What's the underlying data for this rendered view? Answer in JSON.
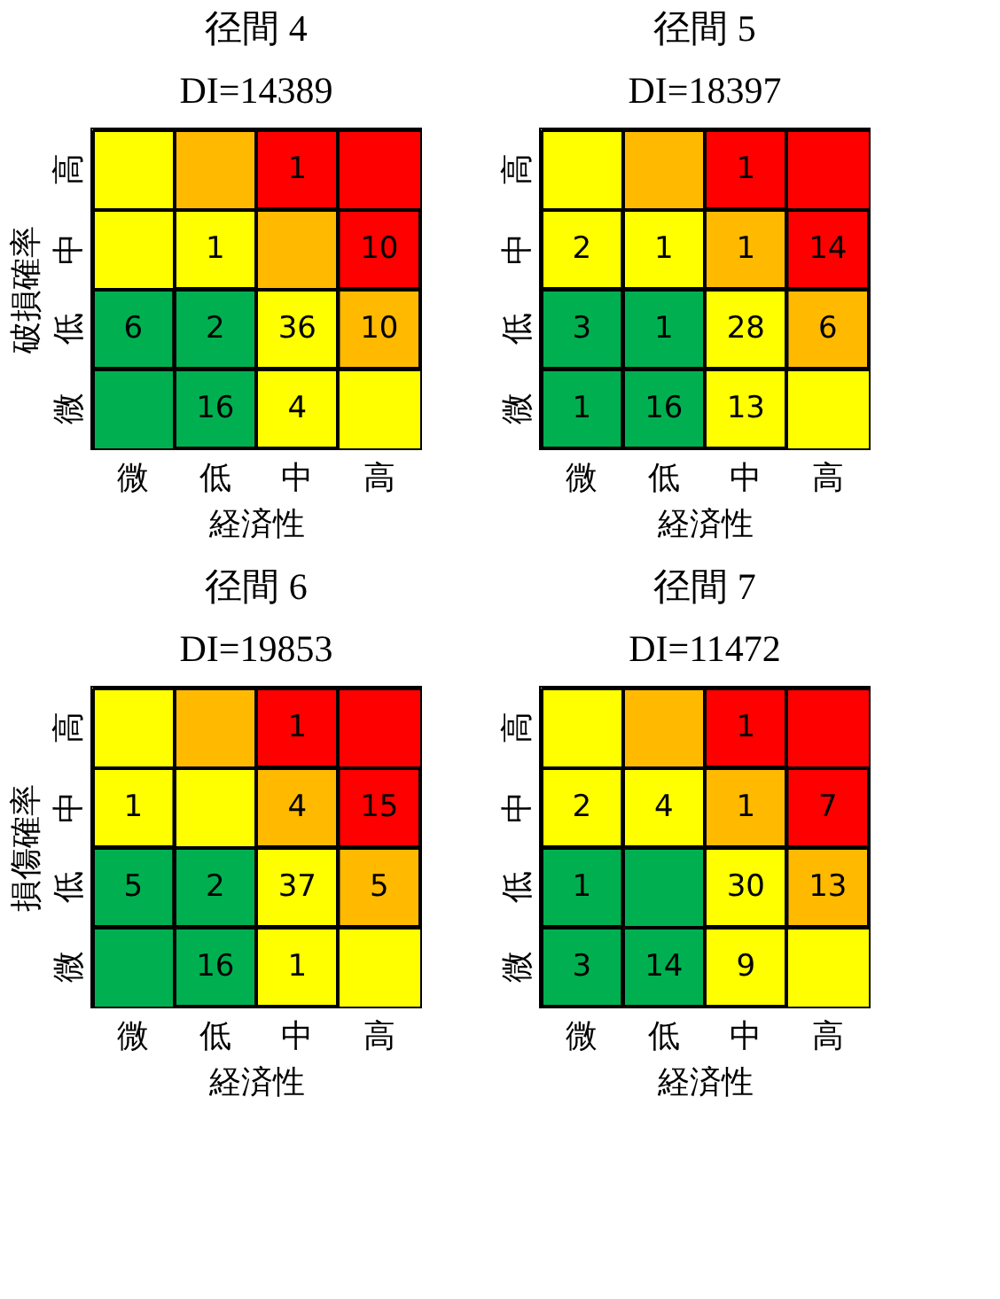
{
  "chart_data": [
    {
      "type": "heatmap",
      "title": "径間 4",
      "subtitle": "DI=14389",
      "xlabel": "経済性",
      "ylabel": "破損確率",
      "categories": [
        "微",
        "低",
        "中",
        "高"
      ],
      "y_categories": [
        "高",
        "中",
        "低",
        "微"
      ],
      "cells": [
        [
          null,
          null,
          1,
          null
        ],
        [
          null,
          1,
          null,
          10
        ],
        [
          6,
          2,
          36,
          10
        ],
        [
          null,
          16,
          4,
          null
        ]
      ],
      "colors": [
        [
          "#ffff00",
          "#ffba00",
          "#ff0000",
          "#ff0000"
        ],
        [
          "#ffff00",
          "#ffff00",
          "#ffba00",
          "#ff0000"
        ],
        [
          "#00b050",
          "#00b050",
          "#ffff00",
          "#ffba00"
        ],
        [
          "#00b050",
          "#00b050",
          "#ffff00",
          "#ffff00"
        ]
      ],
      "data_labels": true,
      "grid": true
    },
    {
      "type": "heatmap",
      "title": "径間 5",
      "subtitle": "DI=18397",
      "xlabel": "経済性",
      "categories": [
        "微",
        "低",
        "中",
        "高"
      ],
      "y_categories": [
        "高",
        "中",
        "低",
        "微"
      ],
      "cells": [
        [
          null,
          null,
          1,
          null
        ],
        [
          2,
          1,
          1,
          14
        ],
        [
          3,
          1,
          28,
          6
        ],
        [
          1,
          16,
          13,
          null
        ]
      ],
      "colors": [
        [
          "#ffff00",
          "#ffba00",
          "#ff0000",
          "#ff0000"
        ],
        [
          "#ffff00",
          "#ffff00",
          "#ffba00",
          "#ff0000"
        ],
        [
          "#00b050",
          "#00b050",
          "#ffff00",
          "#ffba00"
        ],
        [
          "#00b050",
          "#00b050",
          "#ffff00",
          "#ffff00"
        ]
      ],
      "data_labels": true,
      "grid": true
    },
    {
      "type": "heatmap",
      "title": "径間 6",
      "subtitle": "DI=19853",
      "xlabel": "経済性",
      "ylabel": "損傷確率",
      "categories": [
        "微",
        "低",
        "中",
        "高"
      ],
      "y_categories": [
        "高",
        "中",
        "低",
        "微"
      ],
      "cells": [
        [
          null,
          null,
          1,
          null
        ],
        [
          1,
          null,
          4,
          15
        ],
        [
          5,
          2,
          37,
          5
        ],
        [
          null,
          16,
          1,
          null
        ]
      ],
      "colors": [
        [
          "#ffff00",
          "#ffba00",
          "#ff0000",
          "#ff0000"
        ],
        [
          "#ffff00",
          "#ffff00",
          "#ffba00",
          "#ff0000"
        ],
        [
          "#00b050",
          "#00b050",
          "#ffff00",
          "#ffba00"
        ],
        [
          "#00b050",
          "#00b050",
          "#ffff00",
          "#ffff00"
        ]
      ],
      "data_labels": true,
      "grid": true
    },
    {
      "type": "heatmap",
      "title": "径間 7",
      "subtitle": "DI=11472",
      "xlabel": "経済性",
      "categories": [
        "微",
        "低",
        "中",
        "高"
      ],
      "y_categories": [
        "高",
        "中",
        "低",
        "微"
      ],
      "cells": [
        [
          null,
          null,
          1,
          null
        ],
        [
          2,
          4,
          1,
          7
        ],
        [
          1,
          null,
          30,
          13
        ],
        [
          3,
          14,
          9,
          null
        ]
      ],
      "colors": [
        [
          "#ffff00",
          "#ffba00",
          "#ff0000",
          "#ff0000"
        ],
        [
          "#ffff00",
          "#ffff00",
          "#ffba00",
          "#ff0000"
        ],
        [
          "#00b050",
          "#00b050",
          "#ffff00",
          "#ffba00"
        ],
        [
          "#00b050",
          "#00b050",
          "#ffff00",
          "#ffff00"
        ]
      ],
      "data_labels": true,
      "grid": true
    }
  ]
}
